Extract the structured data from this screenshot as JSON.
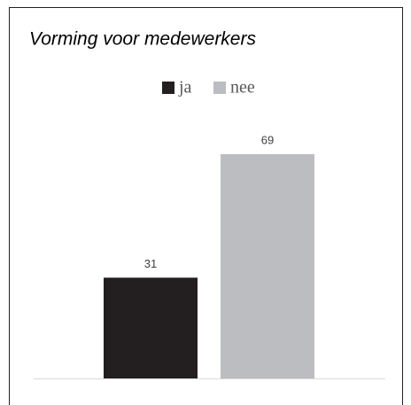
{
  "chart_data": {
    "type": "bar",
    "title": "Vorming voor medewerkers",
    "categories": [
      null
    ],
    "series": [
      {
        "name": "ja",
        "color": "#231f20",
        "values": [
          31
        ]
      },
      {
        "name": "nee",
        "color": "#bcbdc0",
        "values": [
          69
        ]
      }
    ],
    "legend": "top"
  }
}
